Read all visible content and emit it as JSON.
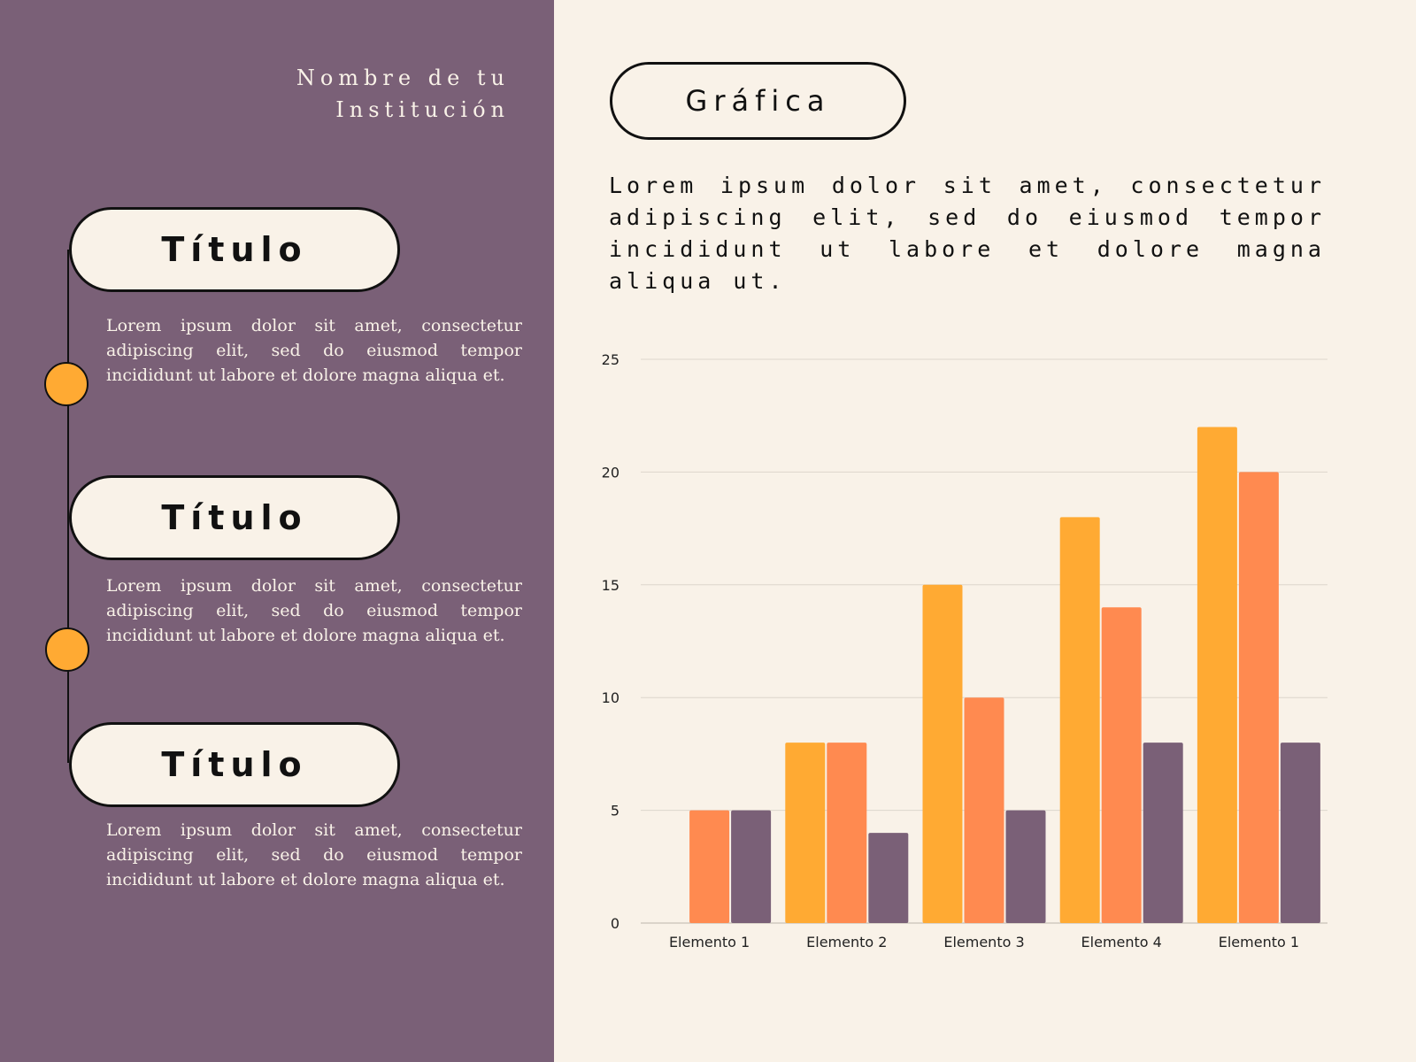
{
  "institution": "Nombre de tu Institución",
  "timeline": [
    {
      "title": "Título",
      "text": "Lorem ipsum dolor sit amet, consectetur adipiscing elit, sed do eiusmod tempor incididunt ut labore et dolore magna aliqua et."
    },
    {
      "title": "Título",
      "text": "Lorem ipsum dolor sit amet, consectetur adipiscing elit, sed do eiusmod tempor incididunt ut labore et dolore magna aliqua et."
    },
    {
      "title": "Título",
      "text": "Lorem ipsum dolor sit amet, consectetur adipiscing elit, sed do eiusmod tempor incididunt ut labore et dolore magna aliqua et."
    }
  ],
  "chart_section": {
    "title": "Gráfica",
    "description": "Lorem ipsum dolor sit amet, consectetur adipiscing elit, sed do eiusmod tempor incididunt ut labore et dolore magna aliqua ut."
  },
  "colors": {
    "panel": "#7a6077",
    "background": "#f9f2e8",
    "accent": "#ffaa33",
    "series": [
      "#ffaa33",
      "#ff8a50",
      "#7a6077"
    ]
  },
  "chart_data": {
    "type": "bar",
    "categories": [
      "Elemento 1",
      "Elemento 2",
      "Elemento 3",
      "Elemento 4",
      "Elemento 1"
    ],
    "series": [
      {
        "values": [
          0,
          8,
          15,
          18,
          22
        ]
      },
      {
        "values": [
          5,
          8,
          10,
          14,
          20
        ]
      },
      {
        "values": [
          5,
          4,
          5,
          8,
          8
        ]
      }
    ],
    "yticks": [
      0,
      5,
      10,
      15,
      20,
      25
    ],
    "ylim": [
      0,
      25
    ],
    "grid": true,
    "title": "",
    "xlabel": "",
    "ylabel": ""
  }
}
